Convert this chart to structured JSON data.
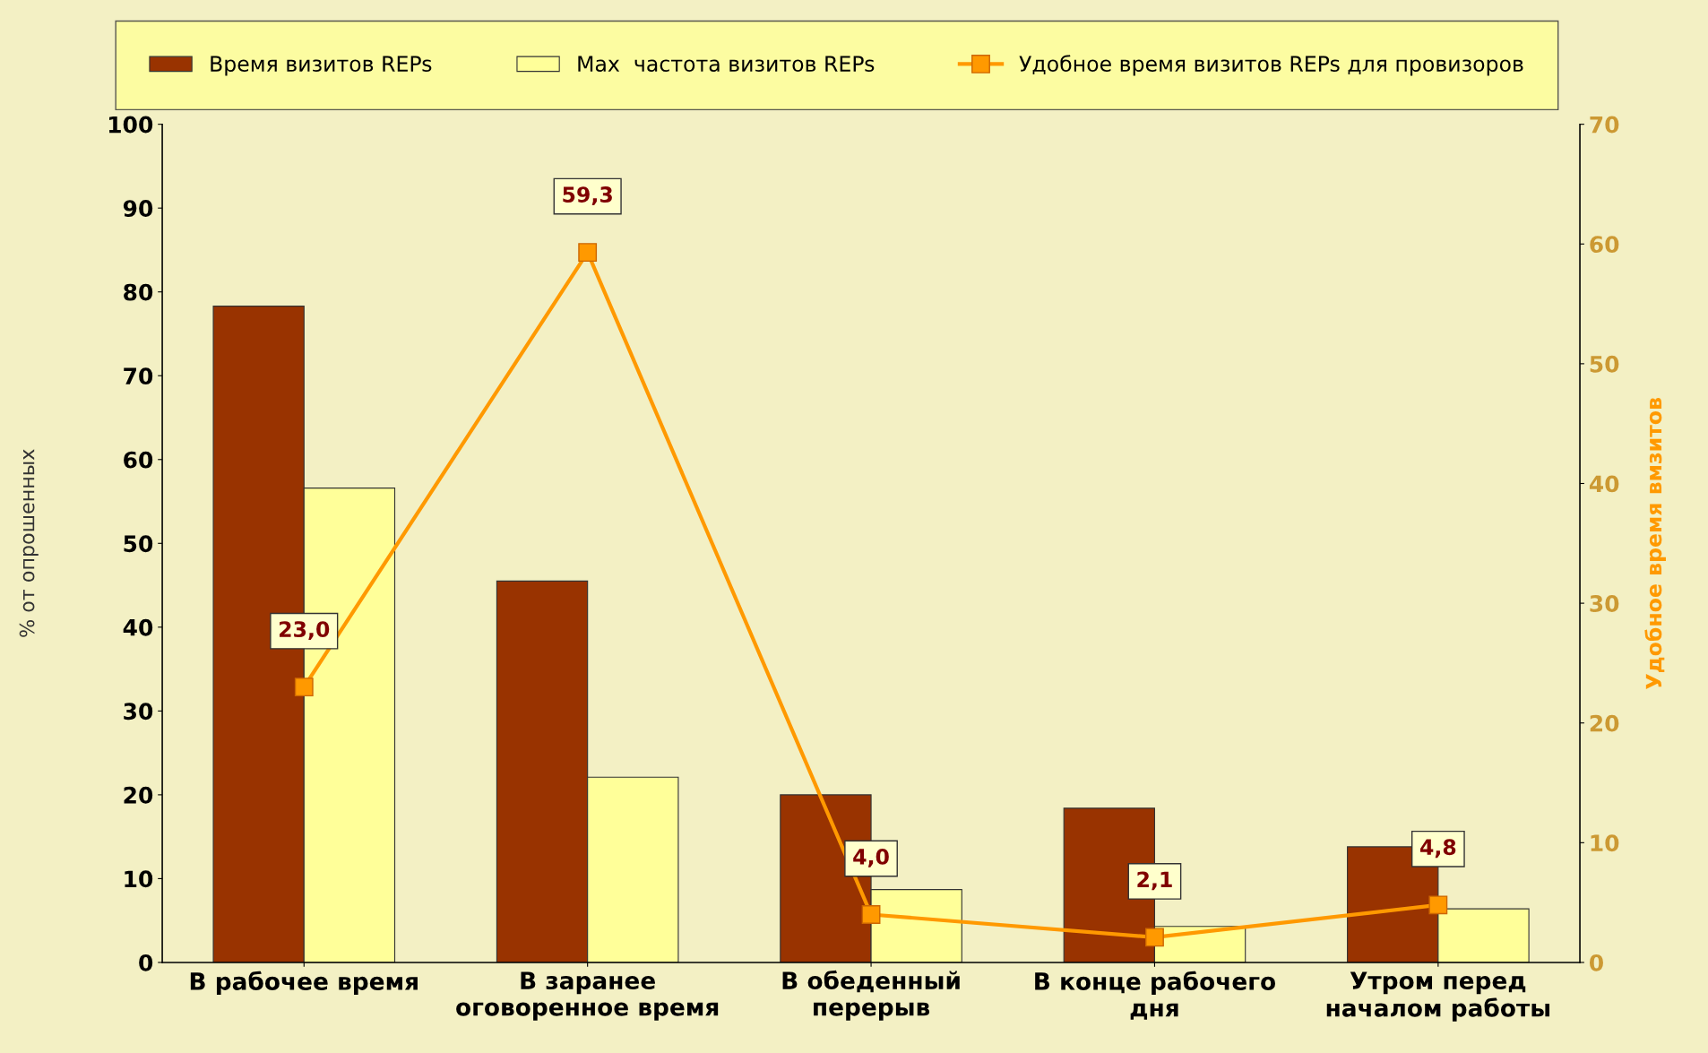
{
  "chart_data": {
    "type": "bar",
    "categories": [
      "В рабочее время",
      "В заранее\nоговоренное время",
      "В обеденный\nперерыв",
      "В конце рабочего\nдня",
      "Утром перед\nначалом работы"
    ],
    "series": [
      {
        "name": "Время визитов REPs",
        "color": "#993300",
        "values": [
          78.3,
          45.5,
          20.0,
          18.4,
          13.8
        ]
      },
      {
        "name": "Max  частота визитов REPs",
        "color": "#ffff99",
        "values": [
          56.6,
          22.1,
          8.7,
          4.3,
          6.4
        ]
      },
      {
        "name": "Удобное время визитов REPs для провизоров",
        "type": "line",
        "axis": "y2",
        "marker": "square",
        "color": "#ff9900",
        "values": [
          23.0,
          59.3,
          4.0,
          2.1,
          4.8
        ],
        "value_labels": [
          "23,0",
          "59,3",
          "4,0",
          "2,1",
          "4,8"
        ]
      }
    ],
    "ylabel": "% от опрошенных",
    "y2label": "Удобное время вмзитов",
    "ylim": [
      0,
      100
    ],
    "yticks": [
      0,
      10,
      20,
      30,
      40,
      50,
      60,
      70,
      80,
      90,
      100
    ],
    "y2lim": [
      0,
      70
    ],
    "y2ticks": [
      0,
      10,
      20,
      30,
      40,
      50,
      60,
      70
    ],
    "legend": "top"
  }
}
